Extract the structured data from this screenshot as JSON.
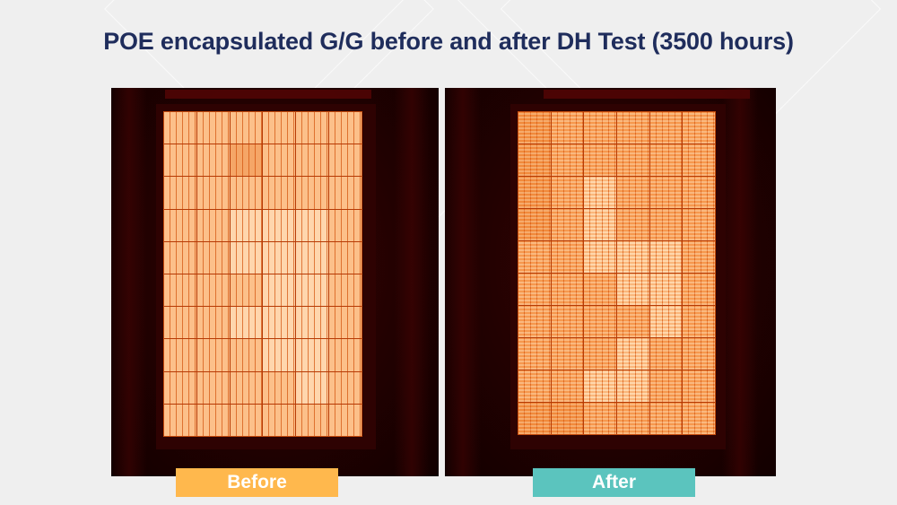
{
  "slide": {
    "title": "POE encapsulated G/G before and after DH Test (3500 hours)",
    "background_color": "#efefef",
    "title_color": "#1f2d5c"
  },
  "images": [
    {
      "id": "before",
      "caption": "Before",
      "caption_color": "#ffb84d",
      "description": "Electroluminescence image of solar module before damp heat test",
      "grid": {
        "columns": 6,
        "rows": 10
      }
    },
    {
      "id": "after",
      "caption": "After",
      "caption_color": "#5bc4be",
      "description": "Electroluminescence image of solar module after 3500 hours damp heat test",
      "grid": {
        "columns": 6,
        "rows": 10
      }
    }
  ]
}
